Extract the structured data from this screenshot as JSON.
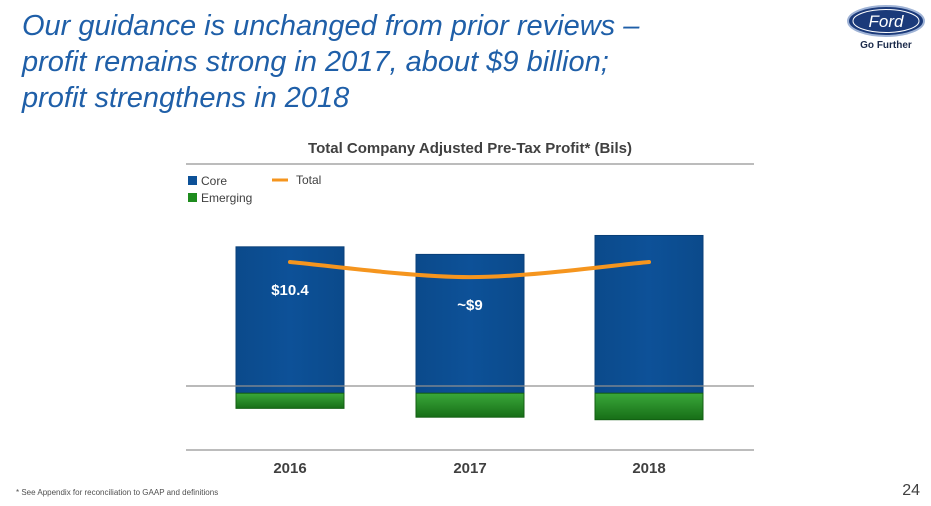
{
  "slide": {
    "headline_lines": [
      "Our guidance is unchanged from prior reviews –",
      "profit remains strong in 2017, about $9 billion;",
      "profit strengthens in 2018"
    ],
    "brand": {
      "logo_text": "Ford",
      "tagline": "Go Further"
    },
    "footnote": "*  See Appendix for reconciliation to GAAP and definitions",
    "page_number": "24"
  },
  "chart_data": {
    "type": "bar",
    "title": "Total Company Adjusted Pre-Tax Profit* (Bils)",
    "categories": [
      "2016",
      "2017",
      "2018"
    ],
    "series": [
      {
        "name": "Core",
        "values": [
          11.6,
          11.0,
          12.5
        ],
        "color": "#0d5198"
      },
      {
        "name": "Emerging",
        "values": [
          -1.2,
          -1.9,
          -2.1
        ],
        "color": "#1e8c1e"
      }
    ],
    "line": {
      "name": "Total",
      "values": [
        10.4,
        9.2,
        10.4
      ],
      "color": "#f5951e"
    },
    "data_labels": [
      "$10.4",
      "~$9",
      ""
    ],
    "ylim": [
      -4.5,
      16.5
    ],
    "legend_position": "top-left",
    "grid": false
  }
}
